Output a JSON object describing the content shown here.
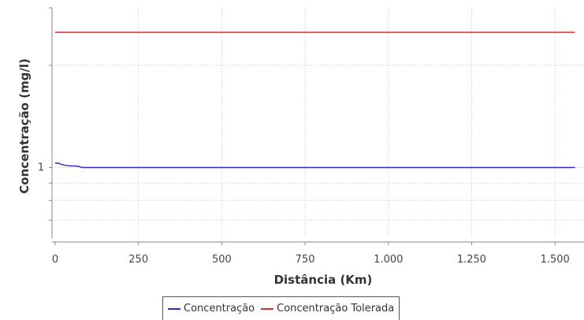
{
  "chart_data": {
    "type": "line",
    "xlabel": "Distância (Km)",
    "ylabel": "Concentração (mg/l)",
    "x_ticks": [
      "0",
      "250",
      "500",
      "750",
      "1.000",
      "1.250",
      "1.500"
    ],
    "x_tick_values": [
      0,
      250,
      500,
      750,
      1000,
      1250,
      1500
    ],
    "y_ticks": [
      "1"
    ],
    "y_tick_values": [
      1
    ],
    "xlim": [
      0,
      1580
    ],
    "ylim": [
      0.62,
      2.95
    ],
    "y_scale": "log",
    "grid": true,
    "legend_position": "bottom",
    "series": [
      {
        "name": "Concentração",
        "color": "#2b2bbf",
        "x": [
          0,
          10,
          20,
          30,
          40,
          50,
          60,
          70,
          80,
          90,
          100,
          200,
          400,
          600,
          800,
          1000,
          1200,
          1400,
          1560
        ],
        "y": [
          1.03,
          1.03,
          1.02,
          1.015,
          1.012,
          1.01,
          1.01,
          1.008,
          1.0,
          1.0,
          1.0,
          1.0,
          1.0,
          1.0,
          1.0,
          1.0,
          1.0,
          1.0,
          1.0
        ]
      },
      {
        "name": "Concentração Tolerada",
        "color": "#d42f2f",
        "x": [
          0,
          1560
        ],
        "y": [
          2.5,
          2.5
        ]
      }
    ]
  }
}
